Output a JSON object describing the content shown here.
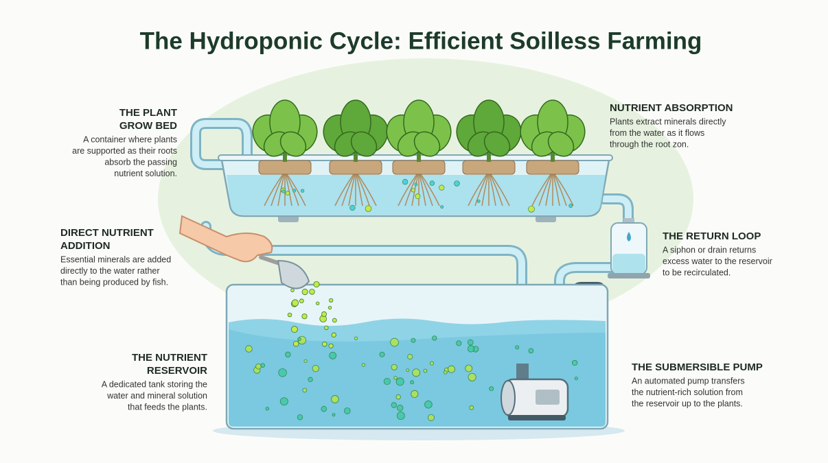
{
  "title": "The Hydroponic Cycle: Efficient Soilless Farming",
  "sections": [
    {
      "heading": [
        "THE PLANT",
        "GROW BED"
      ],
      "body": [
        "A container where plants",
        "are supported as their roots",
        "absorb the passing",
        "nutrient solution."
      ]
    },
    {
      "heading": [
        "DIRECT NUTRIENT",
        "ADDITION"
      ],
      "body": [
        "Essential minerals are added",
        "directly to the water rather",
        "than being produced by fish."
      ]
    },
    {
      "heading": [
        "THE NUTRIENT",
        "RESERVOIR"
      ],
      "body": [
        "A dedicated tank storing the",
        "water and mineral solution",
        "that feeds the plants."
      ]
    },
    {
      "heading": [
        "NUTRIENT ABSORPTION"
      ],
      "body": [
        "Plants extract minerals directly",
        "from the water as it flows",
        "through the root zon."
      ]
    },
    {
      "heading": [
        "THE RETURN LOOP"
      ],
      "body": [
        "A siphon or drain returns",
        "excess water to the reservoir",
        "to be recirculated."
      ]
    },
    {
      "heading": [
        "THE SUBMERSIBLE PUMP"
      ],
      "body": [
        "An automated pump transfers",
        "the nutrient-rich solution from",
        "the reservoir up to the plants."
      ]
    }
  ]
}
